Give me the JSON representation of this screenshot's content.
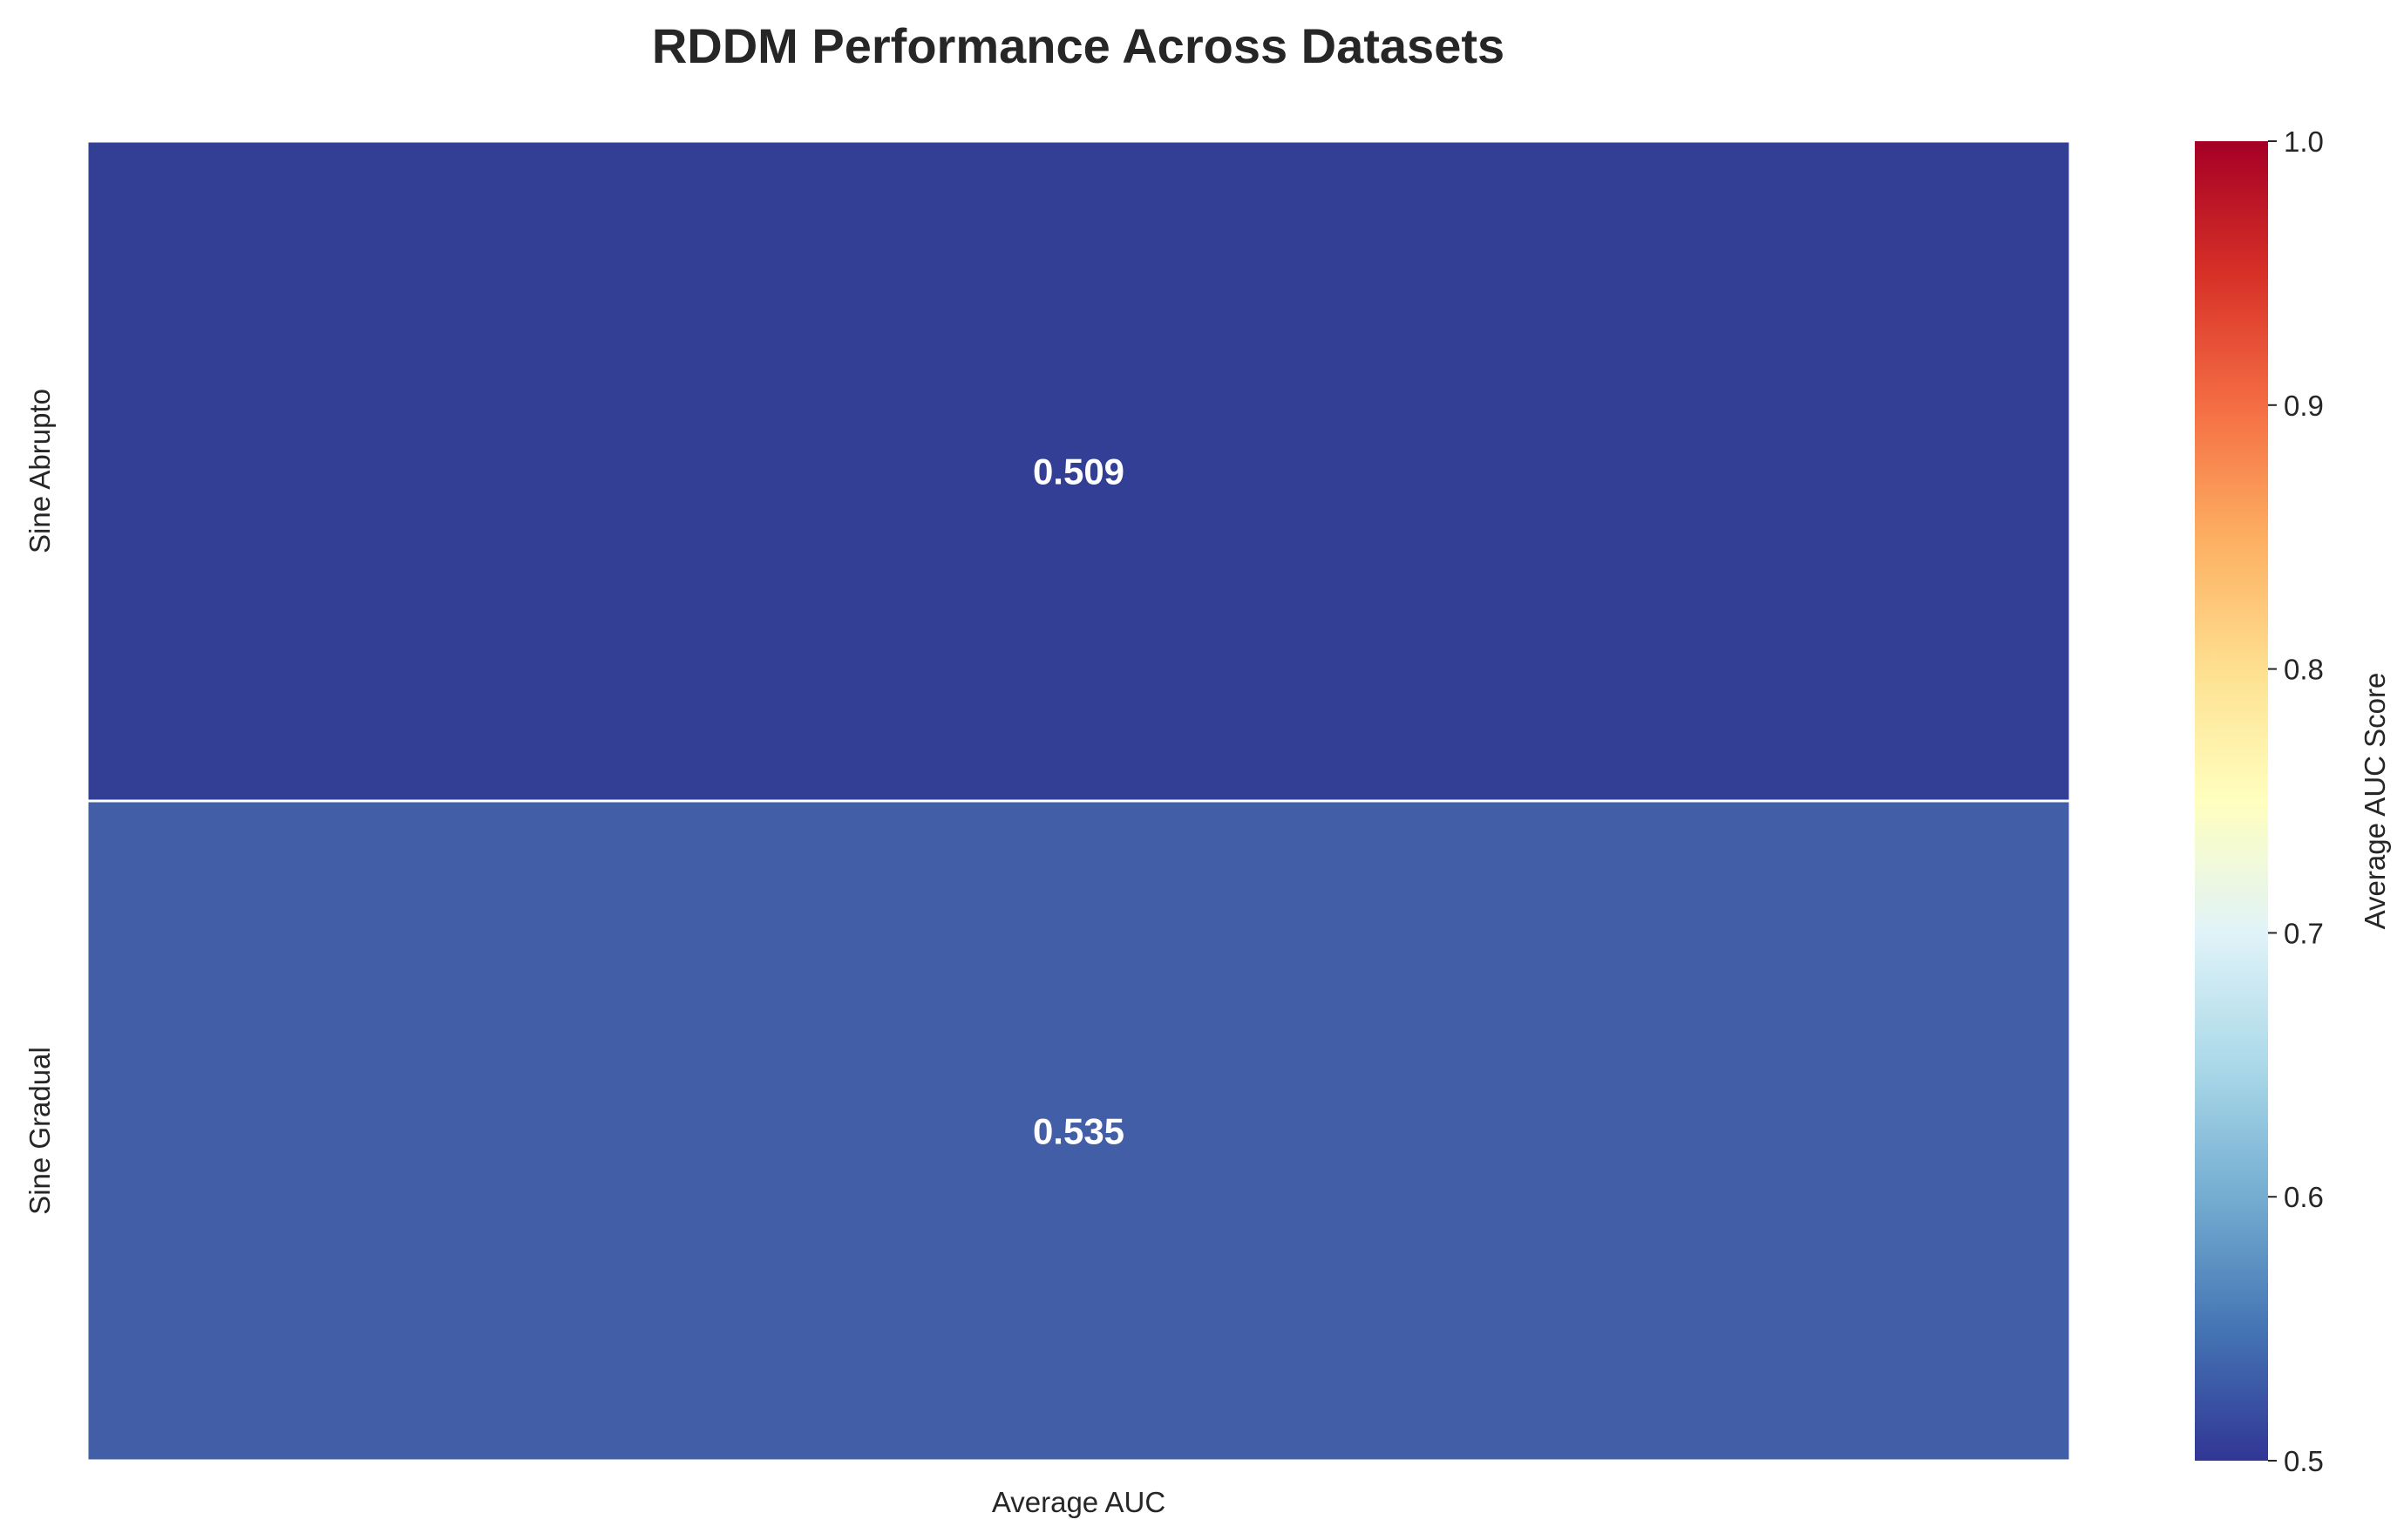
{
  "chart_data": {
    "type": "heatmap",
    "title": "RDDM Performance Across Datasets",
    "x_categories": [
      "Average AUC"
    ],
    "y_categories": [
      "Sine Abrupto",
      "Sine Gradual"
    ],
    "values": [
      [
        0.509
      ],
      [
        0.535
      ]
    ],
    "value_labels": [
      "0.509",
      "0.535"
    ],
    "colorbar": {
      "label": "Average AUC Score",
      "range": [
        0.5,
        1.0
      ],
      "ticks": [
        0.5,
        0.6,
        0.7,
        0.8,
        0.9,
        1.0
      ],
      "tick_labels": [
        "0.5",
        "0.6",
        "0.7",
        "0.8",
        "0.9",
        "1.0"
      ],
      "colormap": "RdYlBu_r"
    },
    "cell_colors": [
      "#333f95",
      "#415ea7"
    ],
    "annotation_color": "#ffffff",
    "grid": false
  }
}
